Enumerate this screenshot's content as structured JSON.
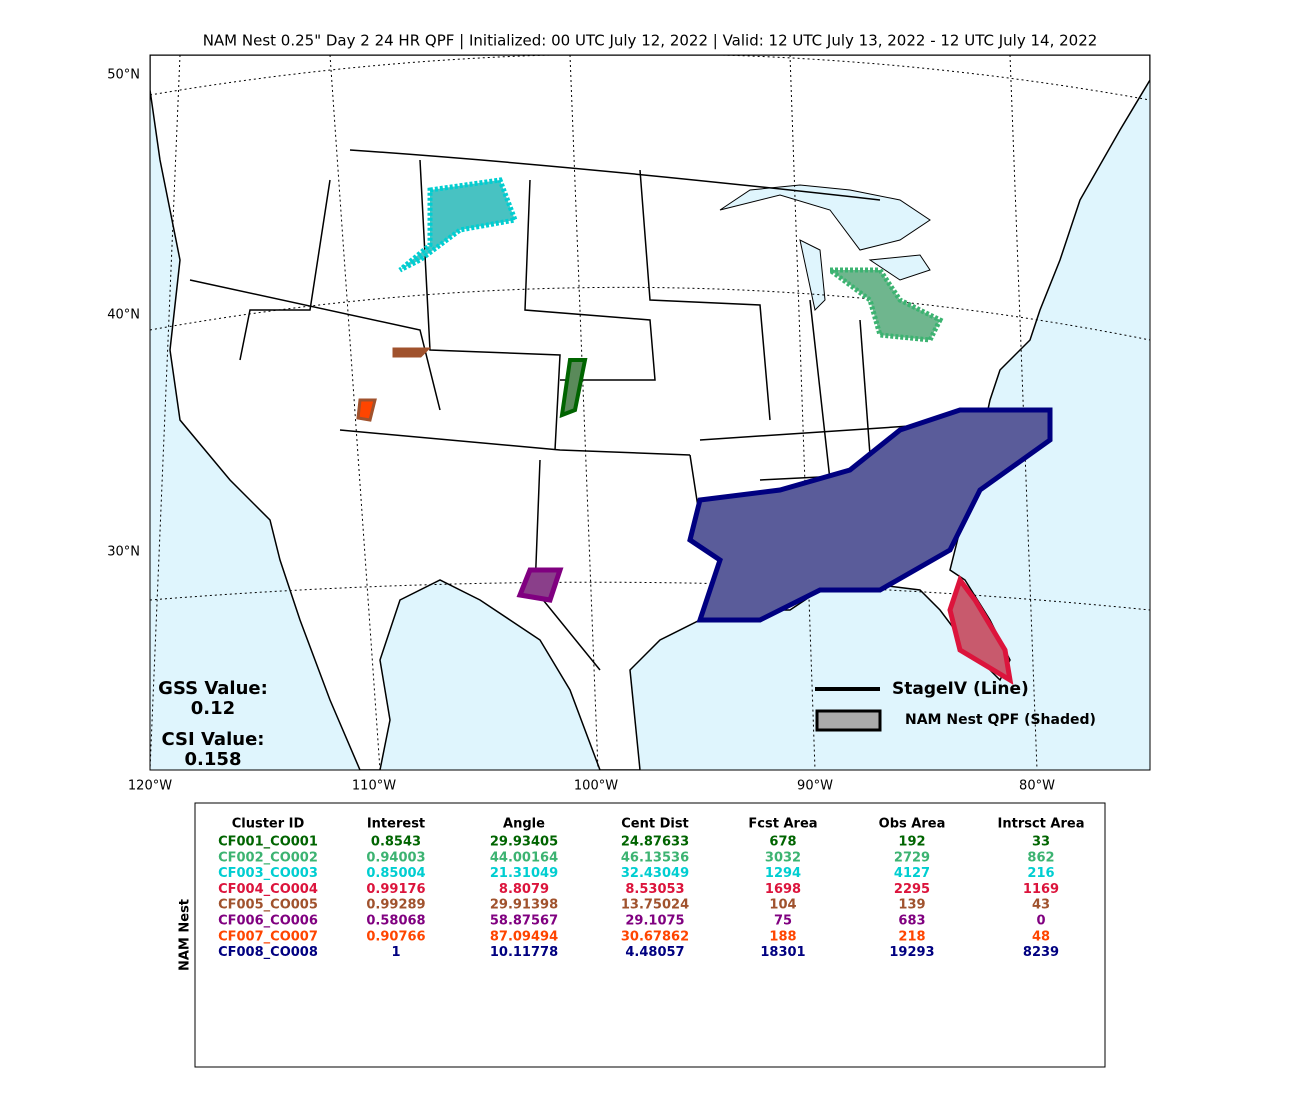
{
  "title": "NAM Nest 0.25\" Day 2 24 HR QPF | Initialized: 00 UTC July 12, 2022 | Valid: 12 UTC July 13, 2022 - 12 UTC July 14, 2022",
  "map": {
    "lat_labels": [
      "50°N",
      "40°N",
      "30°N"
    ],
    "lon_labels": [
      "120°W",
      "110°W",
      "100°W",
      "90°W",
      "80°W"
    ]
  },
  "scores": {
    "gss_label": "GSS Value:",
    "gss_value": "0.12",
    "csi_label": "CSI Value:",
    "csi_value": "0.158"
  },
  "legend": [
    "StageIV (Line)",
    "NAM Nest QPF (Shaded)"
  ],
  "table": {
    "side_label": "NAM Nest",
    "headers": [
      "Cluster ID",
      "Interest",
      "Angle",
      "Cent Dist",
      "Fcst Area",
      "Obs Area",
      "Intrsct Area"
    ],
    "row_colors": [
      "#006400",
      "#3cb371",
      "#00ced1",
      "#dc143c",
      "#a0522d",
      "#800080",
      "#ff4500",
      "#000080"
    ],
    "rows": [
      [
        "CF001_CO001",
        "0.8543",
        "29.93405",
        "24.87633",
        "678",
        "192",
        "33"
      ],
      [
        "CF002_CO002",
        "0.94003",
        "44.00164",
        "46.13536",
        "3032",
        "2729",
        "862"
      ],
      [
        "CF003_CO003",
        "0.85004",
        "21.31049",
        "32.43049",
        "1294",
        "4127",
        "216"
      ],
      [
        "CF004_CO004",
        "0.99176",
        "8.8079",
        "8.53053",
        "1698",
        "2295",
        "1169"
      ],
      [
        "CF005_CO005",
        "0.99289",
        "29.91398",
        "13.75024",
        "104",
        "139",
        "43"
      ],
      [
        "CF006_CO006",
        "0.58068",
        "58.87567",
        "29.1075",
        "75",
        "683",
        "0"
      ],
      [
        "CF007_CO007",
        "0.90766",
        "87.09494",
        "30.67862",
        "188",
        "218",
        "48"
      ],
      [
        "CF008_CO008",
        "1",
        "10.11778",
        "4.48057",
        "18301",
        "19293",
        "8239"
      ]
    ]
  }
}
